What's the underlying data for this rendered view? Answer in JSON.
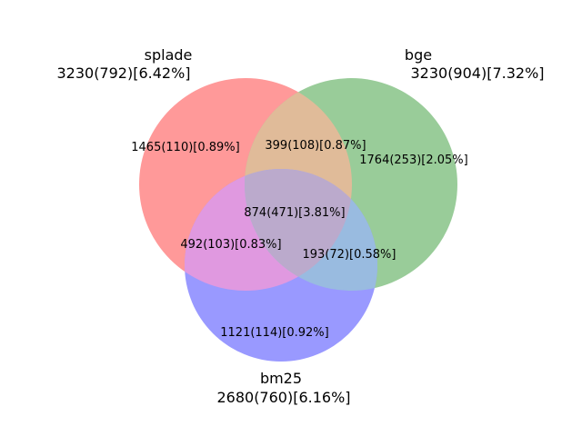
{
  "diagram": {
    "type": "venn3",
    "sets": [
      {
        "key": "splade",
        "name": "splade",
        "summary": "3230(792)[6.42%]",
        "color": "#ff9999"
      },
      {
        "key": "bge",
        "name": "bge",
        "summary": "3230(904)[7.32%]",
        "color": "#99cc99"
      },
      {
        "key": "bm25",
        "name": "bm25",
        "summary": "2680(760)[6.16%]",
        "color": "#9999ff"
      }
    ],
    "regions": {
      "splade_only": "1465(110)[0.89%]",
      "bge_only": "1764(253)[2.05%]",
      "bm25_only": "1121(114)[0.92%]",
      "splade_bge": "399(108)[0.87%]",
      "splade_bm25": "492(103)[0.83%]",
      "bge_bm25": "193(72)[0.58%]",
      "all": "874(471)[3.81%]"
    },
    "region_colors": {
      "splade_bge": "#e0bb99",
      "splade_bm25": "#e099e0",
      "bge_bm25": "#99bbe0",
      "all": "#bbaacc"
    }
  }
}
